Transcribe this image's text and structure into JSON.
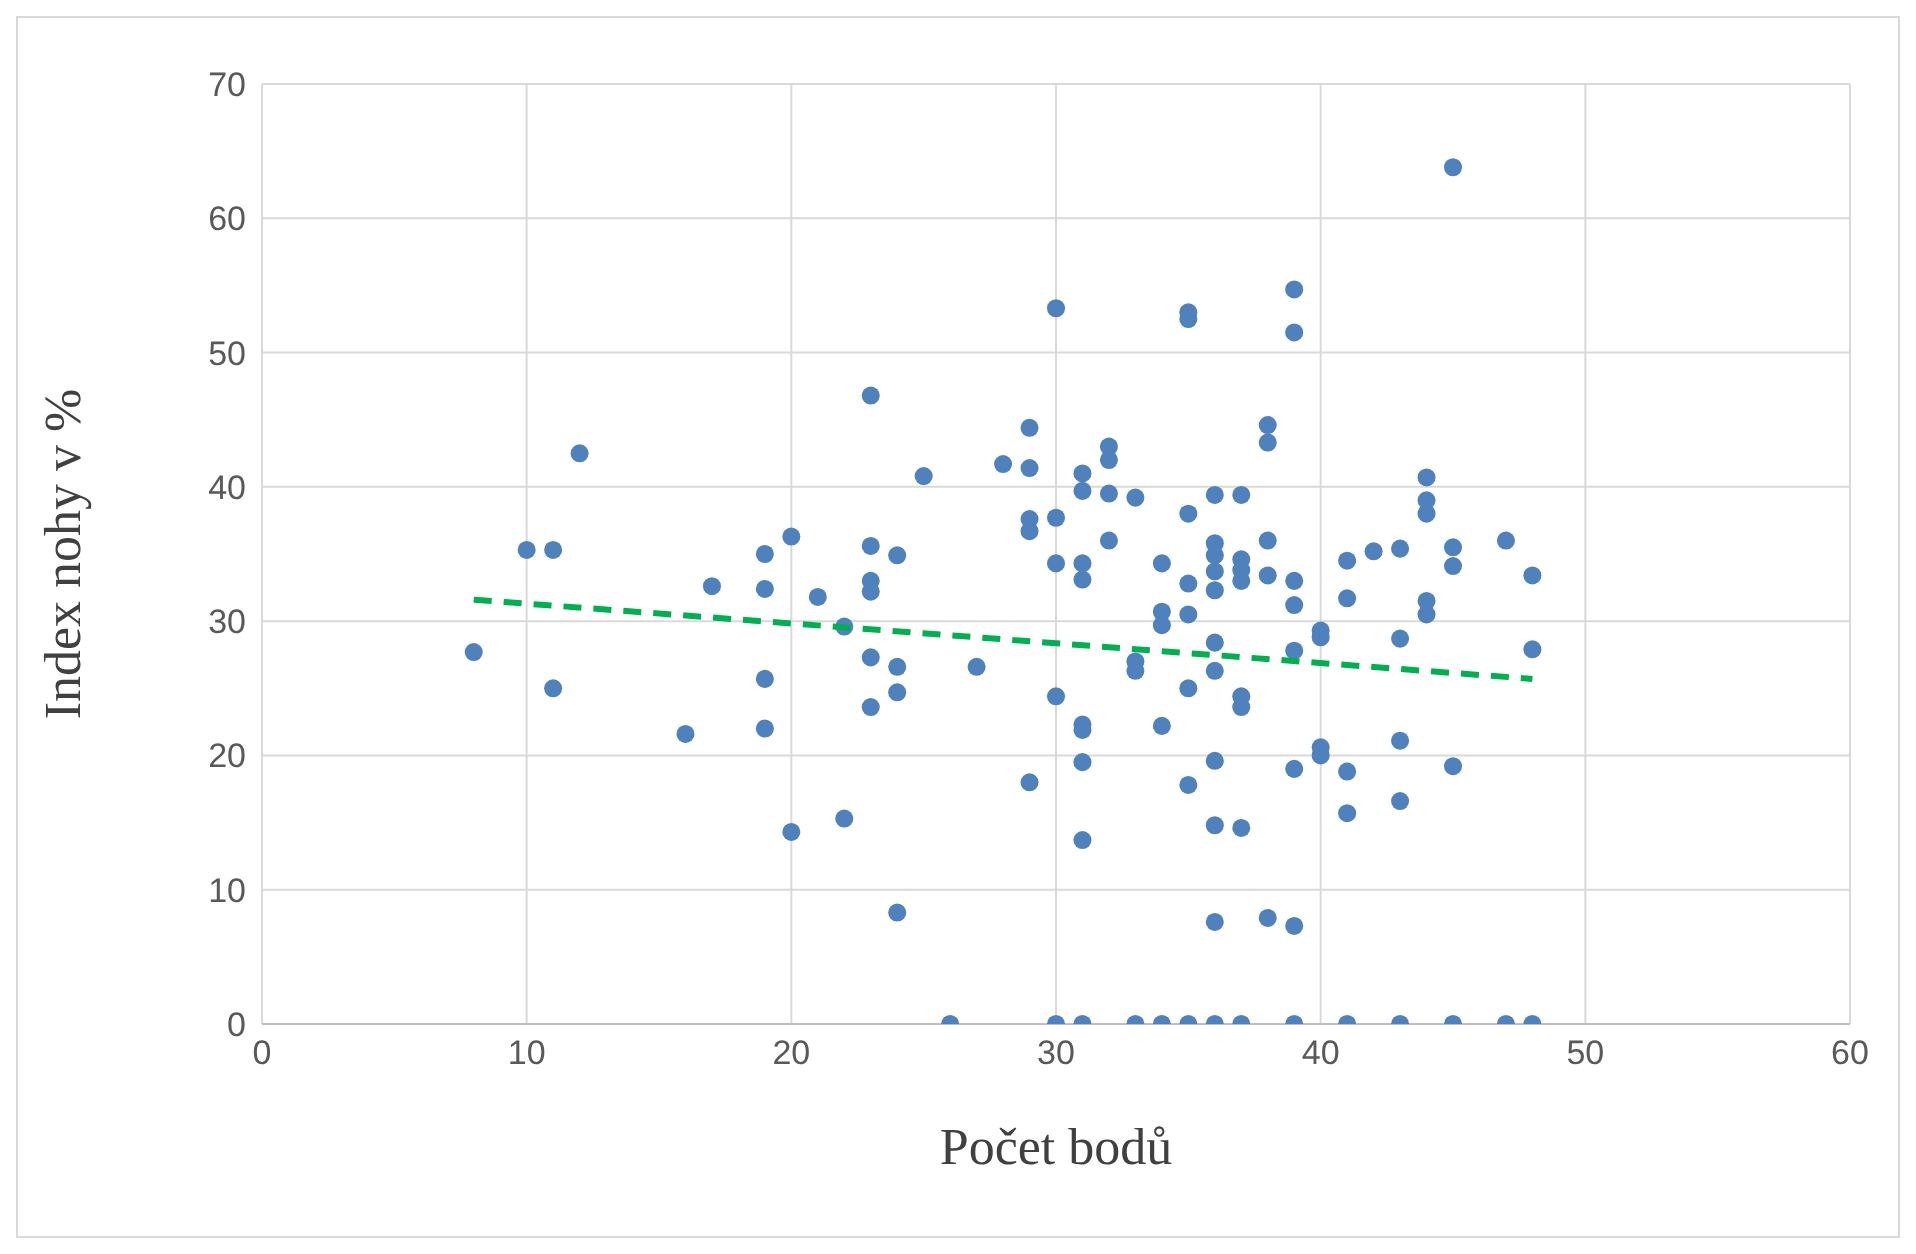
{
  "chart_data": {
    "type": "scatter",
    "xlabel": "Počet bodů",
    "ylabel": "Index nohy v %",
    "xlim": [
      0,
      60
    ],
    "xticks": [
      0,
      10,
      20,
      30,
      40,
      50,
      60
    ],
    "ylim": [
      0,
      70
    ],
    "yticks": [
      0,
      10,
      20,
      30,
      40,
      50,
      60,
      70
    ],
    "grid": true,
    "legend": false,
    "series": [
      {
        "color": "#4f81bd",
        "marker": "circle",
        "x": [
          8,
          10,
          11,
          11,
          12,
          16,
          17,
          19,
          19,
          19,
          19,
          20,
          20,
          21,
          22,
          22,
          23,
          23,
          23,
          23,
          23,
          23,
          24,
          24,
          24,
          24,
          25,
          26,
          27,
          28,
          29,
          29,
          29,
          29,
          29,
          30,
          30,
          30,
          30,
          30,
          31,
          31,
          31,
          31,
          31,
          31,
          31,
          31,
          31,
          32,
          32,
          32,
          32,
          33,
          33,
          33,
          33,
          34,
          34,
          34,
          34,
          34,
          35,
          35,
          35,
          35,
          35,
          35,
          35,
          35,
          36,
          36,
          36,
          36,
          36,
          36,
          36,
          36,
          36,
          36,
          36,
          37,
          37,
          37,
          37,
          37,
          37,
          37,
          37,
          38,
          38,
          38,
          38,
          38,
          39,
          39,
          39,
          39,
          39,
          39,
          39,
          39,
          40,
          40,
          40,
          40,
          41,
          41,
          41,
          41,
          41,
          42,
          43,
          43,
          43,
          43,
          43,
          44,
          44,
          44,
          44,
          44,
          45,
          45,
          45,
          45,
          45,
          47,
          47,
          48,
          48,
          48
        ],
        "values": [
          27.7,
          35.3,
          35.3,
          25,
          42.5,
          21.6,
          32.6,
          35,
          32.4,
          25.7,
          22,
          36.3,
          14.3,
          31.8,
          29.6,
          15.3,
          46.8,
          35.6,
          33,
          32.2,
          27.3,
          23.6,
          34.9,
          26.6,
          24.7,
          8.3,
          40.8,
          0,
          26.6,
          41.7,
          44.4,
          41.4,
          37.6,
          36.7,
          18,
          53.3,
          37.7,
          34.3,
          24.4,
          0,
          41,
          39.7,
          34.3,
          33.1,
          22.3,
          21.9,
          19.5,
          13.7,
          0,
          43,
          42,
          39.5,
          36,
          39.2,
          27,
          26.3,
          0,
          34.3,
          30.7,
          29.7,
          22.2,
          0,
          53,
          52.5,
          38,
          32.8,
          30.5,
          25,
          17.8,
          0,
          39.4,
          35.8,
          34.9,
          33.7,
          32.3,
          28.4,
          26.3,
          19.6,
          14.8,
          7.6,
          0,
          39.4,
          34.6,
          33.8,
          33,
          24.4,
          23.6,
          14.6,
          0,
          44.6,
          43.3,
          36,
          33.4,
          7.9,
          54.7,
          51.5,
          33,
          31.2,
          27.8,
          19,
          7.3,
          0,
          29.3,
          28.8,
          20.6,
          20,
          34.5,
          31.7,
          18.8,
          15.7,
          0,
          35.2,
          35.4,
          28.7,
          21.1,
          16.6,
          0,
          40.7,
          39,
          38,
          31.5,
          30.5,
          63.8,
          35.5,
          34.1,
          19.2,
          0,
          36,
          0,
          33.4,
          27.9,
          0
        ]
      },
      {
        "type": "line",
        "color": "#00b050",
        "line_style": "dashed",
        "marker": "none",
        "x": [
          8,
          48
        ],
        "values": [
          31.6,
          25.7
        ]
      }
    ]
  }
}
